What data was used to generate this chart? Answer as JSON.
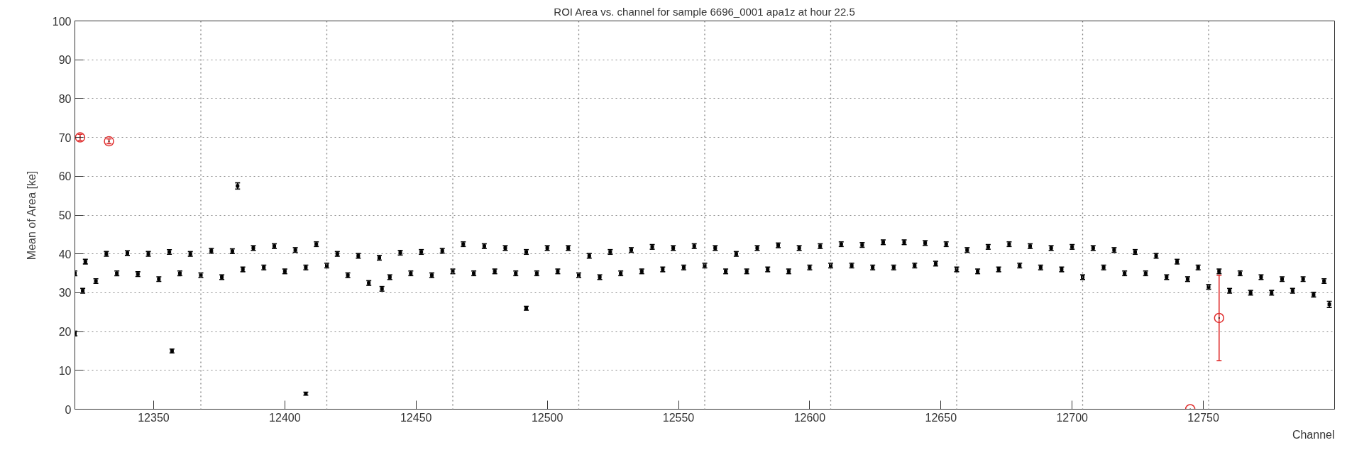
{
  "chart_data": {
    "type": "scatter",
    "title": "ROI Area vs. channel for sample 6696_0001 apa1z at hour 22.5",
    "xlabel": "Channel",
    "ylabel": "Mean of Area [ke]",
    "xlim": [
      12320,
      12800
    ],
    "ylim": [
      0,
      100
    ],
    "xticks": [
      12350,
      12400,
      12450,
      12500,
      12550,
      12600,
      12650,
      12700,
      12750
    ],
    "yticks": [
      0,
      10,
      20,
      30,
      40,
      50,
      60,
      70,
      80,
      90,
      100
    ],
    "grid": "y",
    "ref_lines": [
      {
        "axis": "x",
        "value": 12368,
        "label": null,
        "color": "#808080",
        "line_style": "dotted"
      },
      {
        "axis": "x",
        "value": 12416,
        "label": null,
        "color": "#808080",
        "line_style": "dotted"
      },
      {
        "axis": "x",
        "value": 12464,
        "label": null,
        "color": "#808080",
        "line_style": "dotted"
      },
      {
        "axis": "x",
        "value": 12512,
        "label": null,
        "color": "#808080",
        "line_style": "dotted"
      },
      {
        "axis": "x",
        "value": 12560,
        "label": null,
        "color": "#808080",
        "line_style": "dotted"
      },
      {
        "axis": "x",
        "value": 12608,
        "label": null,
        "color": "#808080",
        "line_style": "dotted"
      },
      {
        "axis": "x",
        "value": 12656,
        "label": null,
        "color": "#808080",
        "line_style": "dotted"
      },
      {
        "axis": "x",
        "value": 12704,
        "label": null,
        "color": "#808080",
        "line_style": "dotted"
      },
      {
        "axis": "x",
        "value": 12752,
        "label": null,
        "color": "#808080",
        "line_style": "dotted"
      }
    ],
    "series": [
      {
        "color": "#000000",
        "marker": "square",
        "x": [
          12324,
          12332,
          12340,
          12348,
          12356,
          12364,
          12372,
          12380,
          12388,
          12396,
          12404,
          12412,
          12420,
          12428,
          12436,
          12444,
          12452,
          12460,
          12468,
          12476,
          12484,
          12492,
          12500,
          12508,
          12516,
          12524,
          12532,
          12540,
          12548,
          12556,
          12564,
          12572,
          12580,
          12588,
          12596,
          12604,
          12612,
          12620,
          12628,
          12636,
          12644,
          12652,
          12660,
          12668,
          12676,
          12684,
          12692,
          12700,
          12708,
          12716,
          12724,
          12732,
          12740,
          12748,
          12756,
          12764,
          12772,
          12780,
          12788,
          12796
        ],
        "values": [
          38.0,
          40.0,
          40.2,
          40.0,
          40.5,
          40.0,
          40.8,
          40.7,
          41.5,
          42.0,
          41.0,
          42.5,
          40.0,
          39.5,
          39.0,
          40.3,
          40.5,
          40.8,
          42.5,
          42.0,
          41.5,
          40.5,
          41.5,
          41.5,
          39.5,
          40.5,
          41.0,
          41.8,
          41.5,
          42.0,
          41.5,
          40.0,
          41.5,
          42.2,
          41.5,
          42.0,
          42.5,
          42.3,
          43.0,
          43.0,
          42.8,
          42.5,
          41.0,
          41.8,
          42.5,
          42.0,
          41.5,
          41.8,
          41.5,
          41.0,
          40.5,
          39.5,
          38.0,
          36.5,
          35.5,
          35.0,
          34.0,
          33.5,
          33.5,
          33.0
        ],
        "errors": [
          0.6,
          0.6,
          0.6,
          0.6,
          0.6,
          0.6,
          0.6,
          0.6,
          0.6,
          0.6,
          0.6,
          0.6,
          0.6,
          0.6,
          0.6,
          0.6,
          0.6,
          0.6,
          0.6,
          0.6,
          0.6,
          0.6,
          0.6,
          0.6,
          0.6,
          0.6,
          0.6,
          0.6,
          0.6,
          0.6,
          0.6,
          0.6,
          0.6,
          0.6,
          0.6,
          0.6,
          0.6,
          0.6,
          0.6,
          0.6,
          0.6,
          0.6,
          0.6,
          0.6,
          0.6,
          0.6,
          0.6,
          0.6,
          0.6,
          0.6,
          0.6,
          0.6,
          0.6,
          0.6,
          0.6,
          0.6,
          0.6,
          0.6,
          0.6,
          0.6
        ]
      },
      {
        "color": "#000000",
        "marker": "square",
        "x": [
          12320,
          12328,
          12336,
          12344,
          12352,
          12360,
          12368,
          12376,
          12384,
          12392,
          12400,
          12408,
          12416,
          12424,
          12432,
          12440,
          12448,
          12456,
          12464,
          12472,
          12480,
          12488,
          12496,
          12504,
          12512,
          12520,
          12528,
          12536,
          12544,
          12552,
          12560,
          12568,
          12576,
          12584,
          12592,
          12600,
          12608,
          12616,
          12624,
          12632,
          12640,
          12648,
          12656,
          12664,
          12672,
          12680,
          12688,
          12696,
          12704,
          12712,
          12720,
          12728,
          12736,
          12744,
          12752,
          12760,
          12768,
          12776,
          12784,
          12792
        ],
        "values": [
          35.0,
          33.0,
          35.0,
          34.8,
          33.5,
          35.0,
          34.5,
          34.0,
          36.0,
          36.5,
          35.5,
          36.5,
          37.0,
          34.5,
          32.5,
          34.0,
          35.0,
          34.5,
          35.5,
          35.0,
          35.5,
          35.0,
          35.0,
          35.5,
          34.5,
          34.0,
          35.0,
          35.5,
          36.0,
          36.5,
          37.0,
          35.5,
          35.5,
          36.0,
          35.5,
          36.5,
          37.0,
          37.0,
          36.5,
          36.5,
          37.0,
          37.5,
          36.0,
          35.5,
          36.0,
          37.0,
          36.5,
          36.0,
          34.0,
          36.5,
          35.0,
          35.0,
          34.0,
          33.5,
          31.5,
          30.5,
          30.0,
          30.0,
          30.5,
          29.5
        ],
        "errors": [
          0.6,
          0.6,
          0.6,
          0.6,
          0.6,
          0.6,
          0.6,
          0.6,
          0.6,
          0.6,
          0.6,
          0.6,
          0.6,
          0.6,
          0.6,
          0.6,
          0.6,
          0.6,
          0.6,
          0.6,
          0.6,
          0.6,
          0.6,
          0.6,
          0.6,
          0.6,
          0.6,
          0.6,
          0.6,
          0.6,
          0.6,
          0.6,
          0.6,
          0.6,
          0.6,
          0.6,
          0.6,
          0.6,
          0.6,
          0.6,
          0.6,
          0.6,
          0.6,
          0.6,
          0.6,
          0.6,
          0.6,
          0.6,
          0.6,
          0.6,
          0.6,
          0.6,
          0.6,
          0.6,
          0.6,
          0.6,
          0.6,
          0.6,
          0.6,
          0.6
        ]
      },
      {
        "color": "#000000",
        "marker": "square",
        "x": [
          12320,
          12323,
          12357,
          12382,
          12408,
          12437,
          12492,
          12798
        ],
        "values": [
          19.5,
          30.5,
          15.0,
          57.5,
          4.0,
          31.0,
          26.0,
          27.0
        ],
        "errors": [
          0.6,
          0.6,
          0.5,
          0.8,
          0.4,
          0.6,
          0.5,
          0.8
        ]
      },
      {
        "color": "#e03030",
        "marker": "circle",
        "x": [
          12322,
          12333,
          12745,
          12756
        ],
        "values": [
          70.0,
          69.0,
          0.0,
          23.5
        ],
        "errors": [
          0.8,
          0.6,
          null,
          [
            12.5,
            34.5
          ]
        ]
      }
    ]
  }
}
